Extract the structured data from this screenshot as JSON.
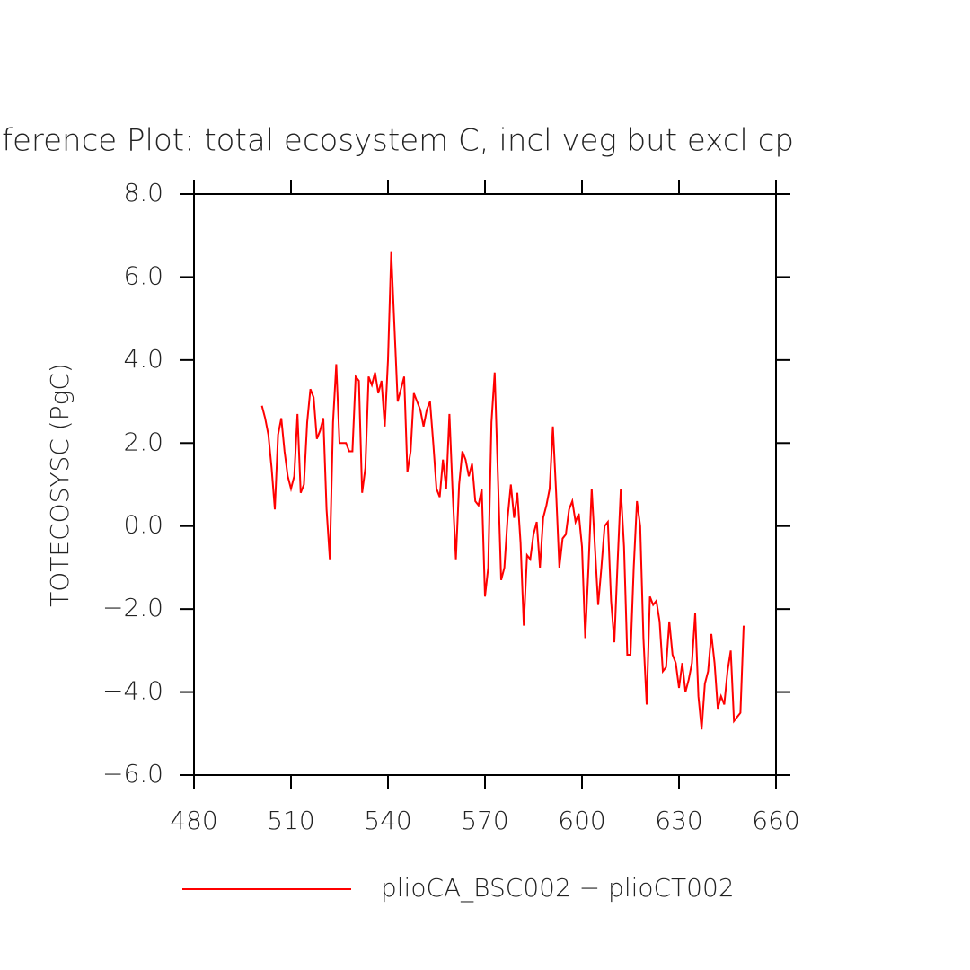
{
  "chart_data": {
    "type": "line",
    "title": "ference Plot: total ecosystem C, incl veg but excl cp",
    "y_label": "TOTECOSYSC  (PgC)",
    "x": [
      501,
      502,
      503,
      504,
      505,
      506,
      507,
      508,
      509,
      510,
      511,
      512,
      513,
      514,
      515,
      516,
      517,
      518,
      519,
      520,
      521,
      522,
      523,
      524,
      525,
      526,
      527,
      528,
      529,
      530,
      531,
      532,
      533,
      534,
      535,
      536,
      537,
      538,
      539,
      540,
      541,
      542,
      543,
      544,
      545,
      546,
      547,
      548,
      549,
      550,
      551,
      552,
      553,
      554,
      555,
      556,
      557,
      558,
      559,
      560,
      561,
      562,
      563,
      564,
      565,
      566,
      567,
      568,
      569,
      570,
      571,
      572,
      573,
      574,
      575,
      576,
      577,
      578,
      579,
      580,
      581,
      582,
      583,
      584,
      585,
      586,
      587,
      588,
      589,
      590,
      591,
      592,
      593,
      594,
      595,
      596,
      597,
      598,
      599,
      600,
      601,
      602,
      603,
      604,
      605,
      606,
      607,
      608,
      609,
      610,
      611,
      612,
      613,
      614,
      615,
      616,
      617,
      618,
      619,
      620,
      621,
      622,
      623,
      624,
      625,
      626,
      627,
      628,
      629,
      630,
      631,
      632,
      633,
      634,
      635,
      636,
      637,
      638,
      639,
      640,
      641,
      642,
      643,
      644,
      645,
      646,
      647,
      648,
      649,
      650
    ],
    "series": [
      {
        "name": "plioCA_BSC002 − plioCT002",
        "color": "#ff0000",
        "values": [
          2.9,
          2.6,
          2.2,
          1.4,
          0.4,
          2.2,
          2.6,
          1.8,
          1.2,
          0.9,
          1.2,
          2.7,
          0.8,
          1.0,
          2.5,
          3.3,
          3.1,
          2.1,
          2.3,
          2.6,
          0.4,
          -0.8,
          2.5,
          3.9,
          2.0,
          2.0,
          2.0,
          1.8,
          1.8,
          3.6,
          3.5,
          0.8,
          1.4,
          3.6,
          3.4,
          3.7,
          3.2,
          3.5,
          2.4,
          4.0,
          6.6,
          4.8,
          3.0,
          3.3,
          3.6,
          1.3,
          1.8,
          3.2,
          3.0,
          2.8,
          2.4,
          2.8,
          3.0,
          2.0,
          0.9,
          0.7,
          1.6,
          0.9,
          2.7,
          0.8,
          -0.8,
          1.0,
          1.8,
          1.6,
          1.2,
          1.5,
          0.6,
          0.5,
          0.9,
          -1.7,
          -1.0,
          2.5,
          3.7,
          1.2,
          -1.3,
          -1.0,
          0.2,
          1.0,
          0.2,
          0.8,
          -0.4,
          -2.4,
          -0.7,
          -0.8,
          -0.2,
          0.1,
          -1.0,
          0.2,
          0.5,
          0.9,
          2.4,
          0.8,
          -1.0,
          -0.3,
          -0.2,
          0.4,
          0.6,
          0.1,
          0.3,
          -0.5,
          -2.7,
          -1.0,
          0.9,
          -0.5,
          -1.9,
          -1.0,
          0.0,
          0.1,
          -1.8,
          -2.8,
          -0.9,
          0.9,
          -0.5,
          -3.1,
          -3.1,
          -1.0,
          0.6,
          0.0,
          -2.7,
          -4.3,
          -1.7,
          -1.9,
          -1.8,
          -2.3,
          -3.5,
          -3.4,
          -2.3,
          -3.1,
          -3.3,
          -3.9,
          -3.3,
          -4.0,
          -3.7,
          -3.3,
          -2.1,
          -4.1,
          -4.9,
          -3.8,
          -3.5,
          -2.6,
          -3.3,
          -4.4,
          -4.1,
          -4.3,
          -3.5,
          -3.0,
          -4.7,
          -4.6,
          -4.5,
          -2.4
        ]
      }
    ],
    "xlim": [
      480,
      660
    ],
    "xticks": [
      480,
      510,
      540,
      570,
      600,
      630,
      660
    ],
    "ylim": [
      -6,
      8
    ],
    "yticks": [
      {
        "value": -6,
        "label": "−6.0"
      },
      {
        "value": -4,
        "label": "−4.0"
      },
      {
        "value": -2,
        "label": "−2.0"
      },
      {
        "value": 0,
        "label": "0.0"
      },
      {
        "value": 2,
        "label": "2.0"
      },
      {
        "value": 4,
        "label": "4.0"
      },
      {
        "value": 6,
        "label": "6.0"
      },
      {
        "value": 8,
        "label": "8.0"
      }
    ],
    "legend": "bottom"
  }
}
